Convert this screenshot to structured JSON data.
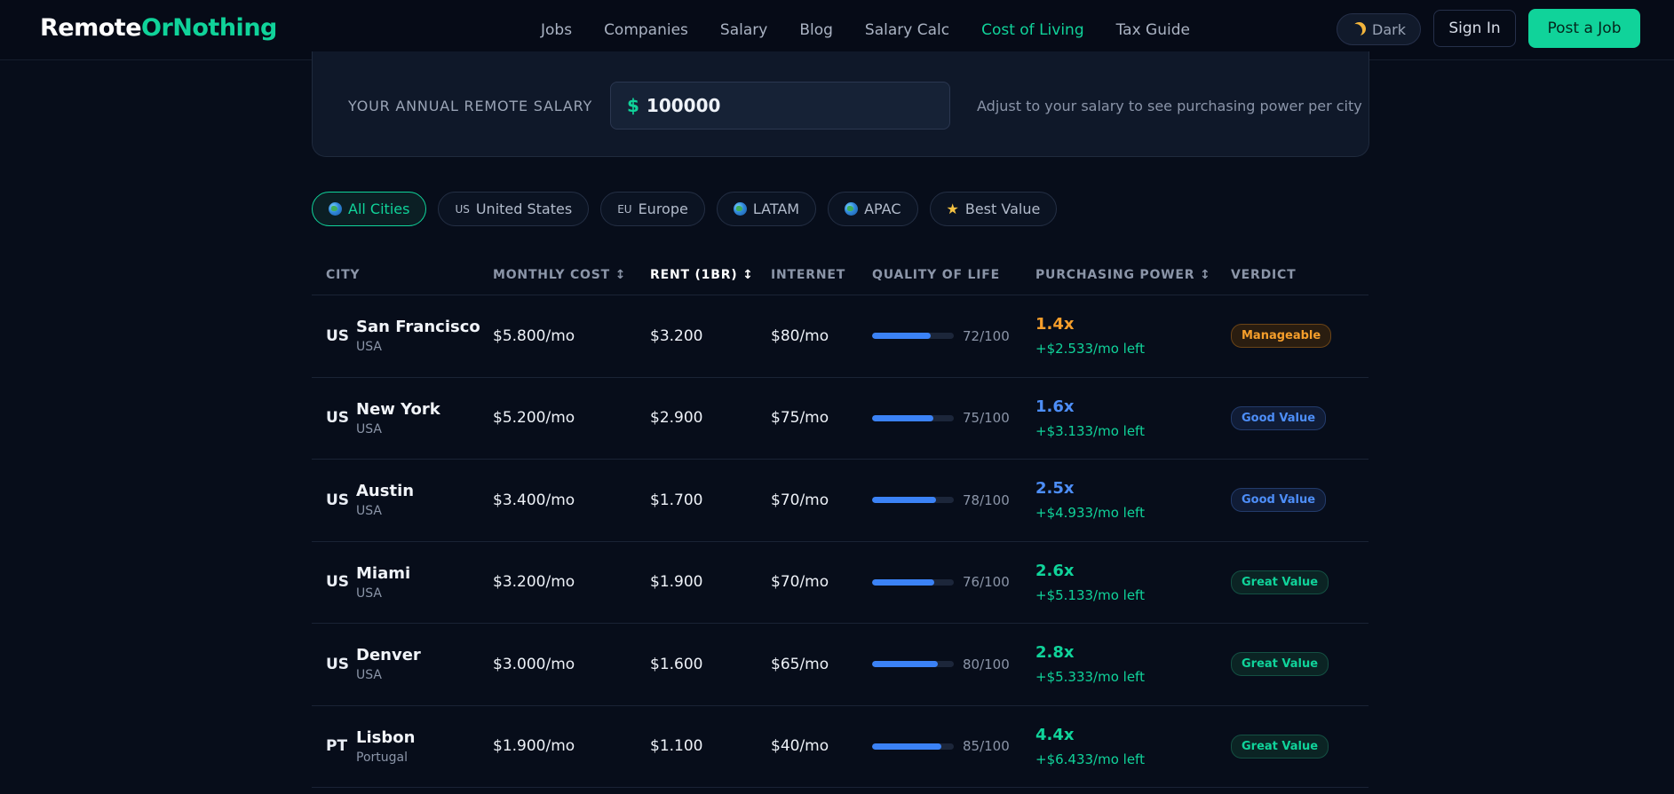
{
  "nav": {
    "logo_part1": "Remote",
    "logo_part2": "OrNothing",
    "links": [
      "Jobs",
      "Companies",
      "Salary",
      "Blog",
      "Salary Calc",
      "Cost of Living",
      "Tax Guide"
    ],
    "active_link": "Cost of Living",
    "theme_label": "Dark",
    "signin_label": "Sign In",
    "post_job_label": "Post a Job"
  },
  "salary": {
    "label": "YOUR ANNUAL REMOTE SALARY",
    "currency_symbol": "$",
    "value": "100000",
    "hint": "Adjust to your salary to see purchasing power per city"
  },
  "filters": [
    {
      "label": "All Cities",
      "prefix": "",
      "icon": "globe-icon",
      "active": true
    },
    {
      "label": "United States",
      "prefix": "US",
      "icon": "",
      "active": false
    },
    {
      "label": "Europe",
      "prefix": "EU",
      "icon": "",
      "active": false
    },
    {
      "label": "LATAM",
      "prefix": "",
      "icon": "globe-icon",
      "active": false
    },
    {
      "label": "APAC",
      "prefix": "",
      "icon": "globe-icon",
      "active": false
    },
    {
      "label": "Best Value",
      "prefix": "",
      "icon": "star-icon",
      "active": false
    }
  ],
  "table": {
    "headers": {
      "city": "CITY",
      "monthly_cost": "MONTHLY COST ↕",
      "rent": "RENT (1BR) ↕",
      "internet": "INTERNET",
      "quality_of_life": "QUALITY OF LIFE",
      "purchasing_power": "PURCHASING POWER ↕",
      "verdict": "VERDICT"
    },
    "rows": [
      {
        "code": "US",
        "city": "San Francisco",
        "country": "USA",
        "monthly_cost": "$5.800/mo",
        "rent": "$3.200",
        "internet": "$80/mo",
        "qol": 72,
        "qol_text": "72/100",
        "multiplier": "1.4x",
        "left": "+$2.533/mo left",
        "verdict": "Manageable",
        "tone": "orange"
      },
      {
        "code": "US",
        "city": "New York",
        "country": "USA",
        "monthly_cost": "$5.200/mo",
        "rent": "$2.900",
        "internet": "$75/mo",
        "qol": 75,
        "qol_text": "75/100",
        "multiplier": "1.6x",
        "left": "+$3.133/mo left",
        "verdict": "Good Value",
        "tone": "blue"
      },
      {
        "code": "US",
        "city": "Austin",
        "country": "USA",
        "monthly_cost": "$3.400/mo",
        "rent": "$1.700",
        "internet": "$70/mo",
        "qol": 78,
        "qol_text": "78/100",
        "multiplier": "2.5x",
        "left": "+$4.933/mo left",
        "verdict": "Good Value",
        "tone": "blue"
      },
      {
        "code": "US",
        "city": "Miami",
        "country": "USA",
        "monthly_cost": "$3.200/mo",
        "rent": "$1.900",
        "internet": "$70/mo",
        "qol": 76,
        "qol_text": "76/100",
        "multiplier": "2.6x",
        "left": "+$5.133/mo left",
        "verdict": "Great Value",
        "tone": "green"
      },
      {
        "code": "US",
        "city": "Denver",
        "country": "USA",
        "monthly_cost": "$3.000/mo",
        "rent": "$1.600",
        "internet": "$65/mo",
        "qol": 80,
        "qol_text": "80/100",
        "multiplier": "2.8x",
        "left": "+$5.333/mo left",
        "verdict": "Great Value",
        "tone": "green"
      },
      {
        "code": "PT",
        "city": "Lisbon",
        "country": "Portugal",
        "monthly_cost": "$1.900/mo",
        "rent": "$1.100",
        "internet": "$40/mo",
        "qol": 85,
        "qol_text": "85/100",
        "multiplier": "4.4x",
        "left": "+$6.433/mo left",
        "verdict": "Great Value",
        "tone": "green"
      }
    ]
  },
  "colors": {
    "accent": "#10d39a",
    "orange": "#f59e2b",
    "blue": "#4d8ef8",
    "background": "#070d1a"
  }
}
